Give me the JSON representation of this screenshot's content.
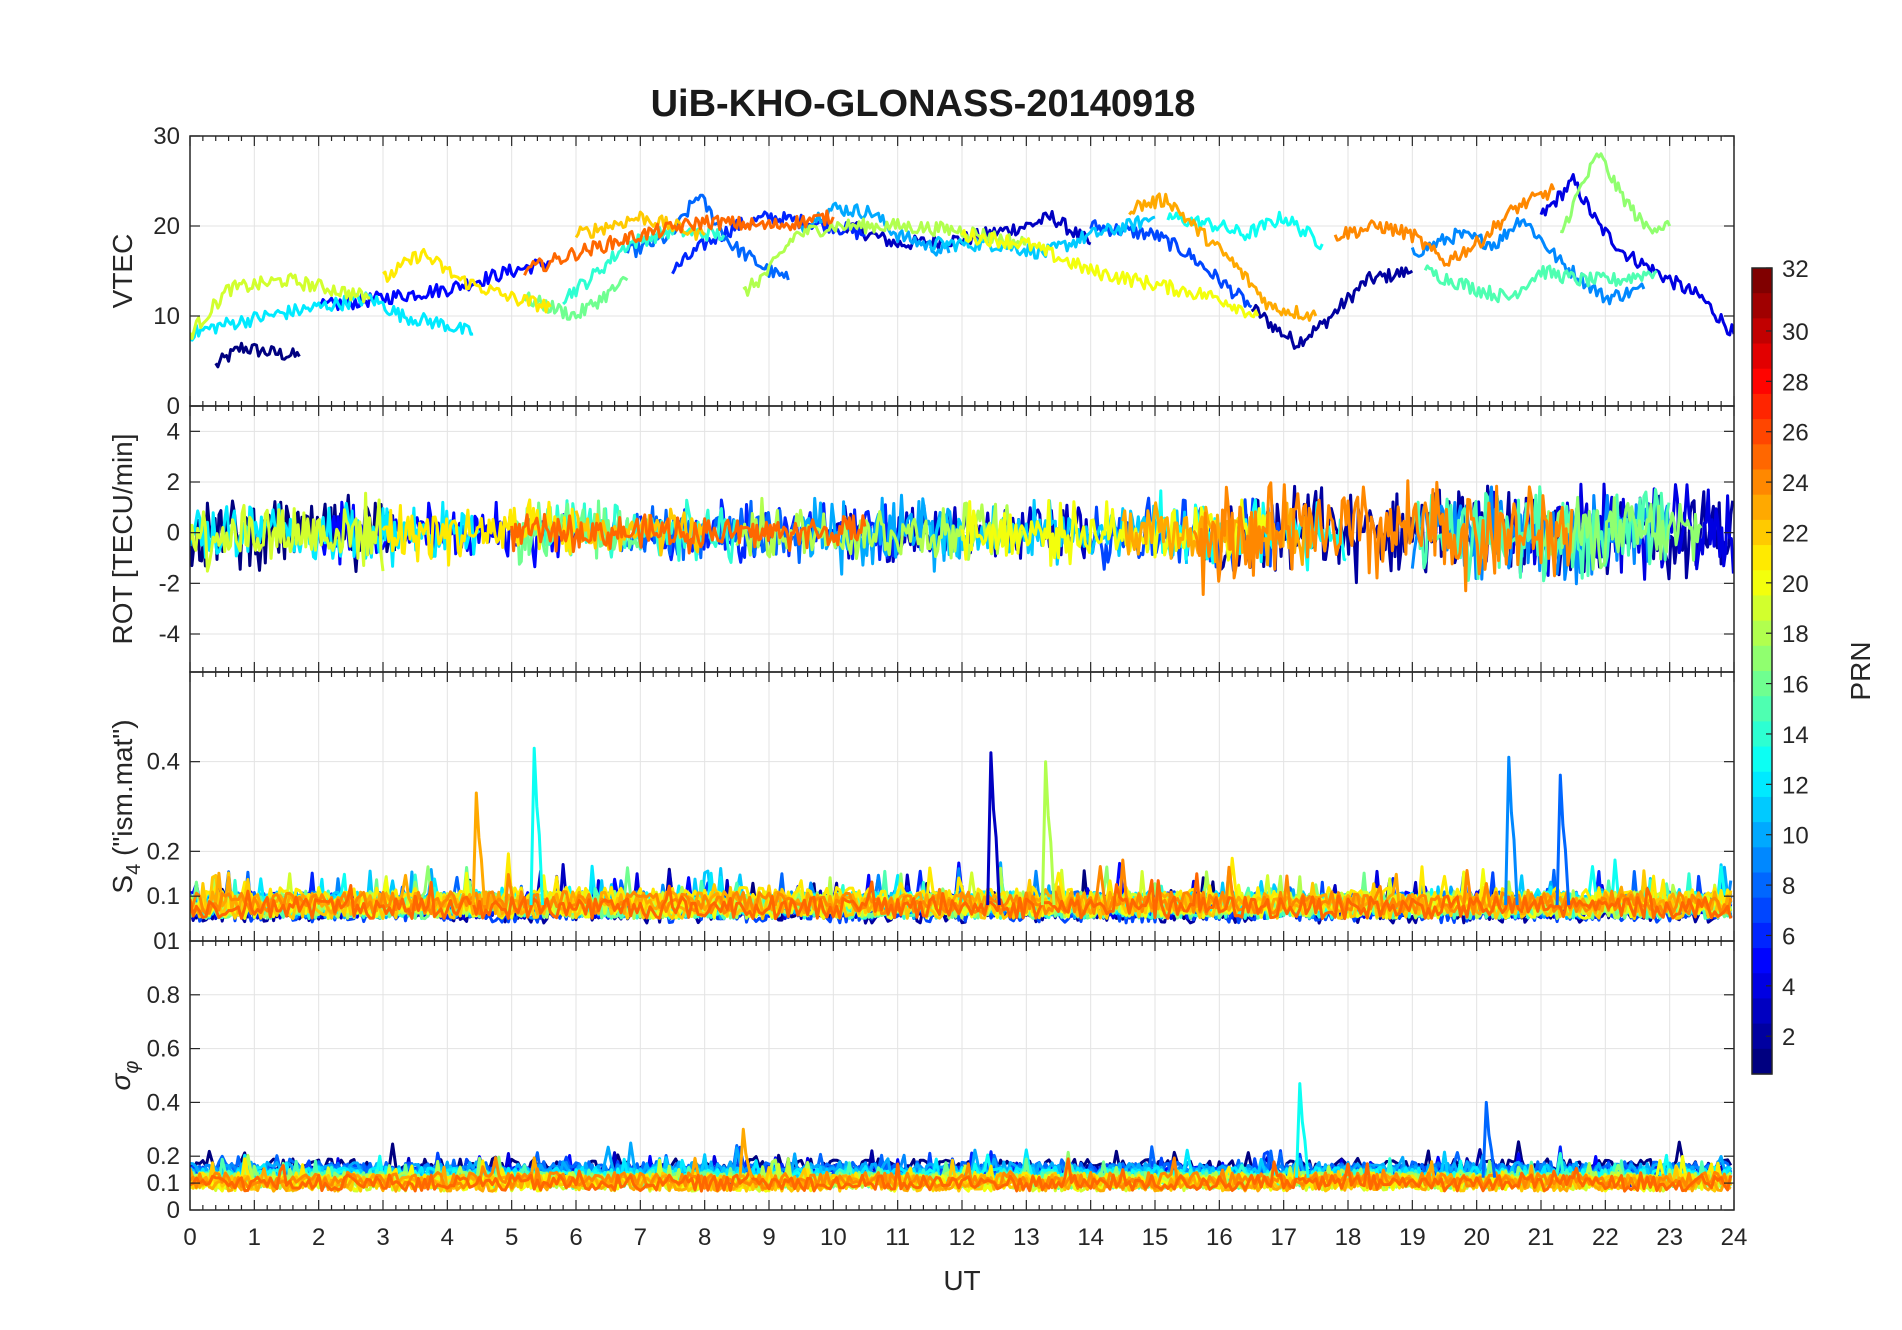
{
  "chart_data": {
    "type": "line",
    "title": "UiB-KHO-GLONASS-20140918",
    "xlabel": "UT",
    "xlim": [
      0,
      24
    ],
    "xticks": [
      0,
      1,
      2,
      3,
      4,
      5,
      6,
      7,
      8,
      9,
      10,
      11,
      12,
      13,
      14,
      15,
      16,
      17,
      18,
      19,
      20,
      21,
      22,
      23,
      24
    ],
    "grid": true,
    "panels": [
      {
        "name": "vtec",
        "ylabel": "VTEC",
        "ylim": [
          0,
          30
        ],
        "yticks": [
          0,
          10,
          20,
          30
        ]
      },
      {
        "name": "rot",
        "ylabel": "ROT [TECU/min]",
        "ylim": [
          -5.5,
          5
        ],
        "yticks": [
          -4,
          -2,
          0,
          2,
          4
        ]
      },
      {
        "name": "s4",
        "ylabel": "S4 (\"ism.mat\")",
        "ylabel_main": "S",
        "ylabel_sub": "4",
        "ylabel_rest": " (\"ism.mat\")",
        "ylim": [
          0,
          0.6
        ],
        "yticks": [
          0.1,
          0.2,
          0.4
        ],
        "extra_tick": "01"
      },
      {
        "name": "sigma",
        "ylabel": "σφ",
        "ylabel_main": "σ",
        "ylabel_sub": "φ",
        "ylim": [
          0,
          1
        ],
        "yticks": [
          0,
          0.1,
          0.2,
          0.4,
          0.6,
          0.8
        ]
      }
    ],
    "colorbar": {
      "label": "PRN",
      "min": 1,
      "max": 32,
      "ticks": [
        2,
        4,
        6,
        8,
        10,
        12,
        14,
        16,
        18,
        20,
        22,
        24,
        26,
        28,
        30,
        32
      ],
      "colormap": "jet"
    },
    "series": [
      {
        "prn": 1,
        "vtec": [
          [
            0.4,
            4.5
          ],
          [
            0.8,
            6.5
          ],
          [
            1.2,
            6
          ],
          [
            1.7,
            5.5
          ]
        ],
        "rot_band": [
          0,
          3.2,
          1.2
        ],
        "s4_base": 0.07,
        "sig_base": 0.16
      },
      {
        "prn": 2,
        "vtec": [
          [
            16.5,
            11
          ],
          [
            16.9,
            8.5
          ],
          [
            17.2,
            7
          ],
          [
            17.6,
            9
          ],
          [
            18.3,
            14
          ],
          [
            19,
            15
          ]
        ],
        "rot_band": [
          16,
          24,
          1.5
        ],
        "s4_base": 0.06,
        "sig_base": 0.14
      },
      {
        "prn": 3,
        "vtec": [
          [
            10.2,
            20
          ],
          [
            11,
            18
          ],
          [
            12,
            18.5
          ],
          [
            13,
            20
          ],
          [
            13.4,
            21
          ],
          [
            14,
            18
          ]
        ],
        "rot_band": [
          10,
          14,
          1.0
        ],
        "s4_base": 0.07,
        "sig_base": 0.13
      },
      {
        "prn": 4,
        "vtec": [
          [
            21,
            21
          ],
          [
            21.5,
            25
          ],
          [
            21.9,
            20
          ],
          [
            22.3,
            17
          ],
          [
            23,
            14
          ],
          [
            23.5,
            12
          ],
          [
            24,
            8
          ]
        ],
        "rot_band": [
          20,
          24,
          1.5
        ],
        "s4_base": 0.07,
        "sig_base": 0.12
      },
      {
        "prn": 5,
        "vtec": [
          [
            2,
            11
          ],
          [
            3,
            12
          ],
          [
            4,
            13
          ],
          [
            5,
            15
          ],
          [
            5.6,
            16
          ]
        ],
        "rot_band": [
          2,
          6,
          1.0
        ],
        "s4_base": 0.08,
        "sig_base": 0.13
      },
      {
        "prn": 6,
        "vtec": [
          [
            7.5,
            15
          ],
          [
            8,
            18
          ],
          [
            8.5,
            20
          ],
          [
            9,
            21
          ],
          [
            10,
            20
          ],
          [
            10.5,
            19
          ]
        ],
        "rot_band": [
          7,
          11,
          1.0
        ],
        "s4_base": 0.07,
        "sig_base": 0.13
      },
      {
        "prn": 7,
        "vtec": [
          [
            14,
            20
          ],
          [
            15,
            19
          ],
          [
            15.5,
            17
          ],
          [
            16,
            14
          ],
          [
            16.5,
            11
          ]
        ],
        "rot_band": [
          14,
          17,
          1.2
        ],
        "s4_base": 0.06,
        "sig_base": 0.14
      },
      {
        "prn": 8,
        "vtec": [
          [
            6.8,
            17
          ],
          [
            7.5,
            19
          ],
          [
            7.9,
            23.5
          ],
          [
            8.4,
            18
          ],
          [
            9,
            15
          ],
          [
            9.3,
            14
          ]
        ],
        "rot_band": [
          6.5,
          9.5,
          1.0
        ],
        "s4_base": 0.08,
        "sig_base": 0.15
      },
      {
        "prn": 9,
        "vtec": [
          [
            19,
            17
          ],
          [
            19.7,
            19
          ],
          [
            20.3,
            18
          ],
          [
            20.7,
            21
          ],
          [
            21.3,
            16
          ],
          [
            22,
            12
          ],
          [
            22.6,
            13
          ]
        ],
        "rot_band": [
          19,
          23,
          1.5
        ],
        "s4_base": 0.08,
        "sig_base": 0.14
      },
      {
        "prn": 10,
        "vtec": [
          [
            9.5,
            20
          ],
          [
            10,
            22
          ],
          [
            10.6,
            21.5
          ],
          [
            11,
            19
          ],
          [
            11.8,
            17
          ]
        ],
        "rot_band": [
          9.5,
          12,
          1.2
        ],
        "s4_base": 0.07,
        "sig_base": 0.15
      },
      {
        "prn": 11,
        "vtec": [
          [
            11.5,
            18
          ],
          [
            12.5,
            18
          ],
          [
            13.3,
            17
          ],
          [
            14,
            19
          ],
          [
            14.6,
            20
          ],
          [
            15,
            21
          ]
        ],
        "rot_band": [
          11.5,
          15.5,
          1.0
        ],
        "s4_base": 0.08,
        "sig_base": 0.13
      },
      {
        "prn": 12,
        "vtec": [
          [
            0,
            8
          ],
          [
            0.5,
            9
          ],
          [
            1.2,
            10
          ],
          [
            2,
            11
          ],
          [
            2.8,
            12
          ],
          [
            3.3,
            10
          ],
          [
            4,
            9
          ],
          [
            4.4,
            8
          ]
        ],
        "rot_band": [
          0,
          4.5,
          1.0
        ],
        "s4_base": 0.08,
        "sig_base": 0.13
      },
      {
        "prn": 13,
        "vtec": [
          [
            15.2,
            21
          ],
          [
            16,
            20
          ],
          [
            16.4,
            19
          ],
          [
            17,
            21
          ],
          [
            17.6,
            18
          ]
        ],
        "rot_band": [
          15,
          18,
          1.2
        ],
        "s4_base": 0.08,
        "sig_base": 0.12
      },
      {
        "prn": 14,
        "vtec": [
          [
            5.8,
            12
          ],
          [
            6.2,
            14
          ],
          [
            6.8,
            18
          ],
          [
            7.5,
            19.5
          ],
          [
            8.3,
            19
          ]
        ],
        "rot_band": [
          5.5,
          8.5,
          1.0
        ],
        "s4_base": 0.07,
        "sig_base": 0.12
      },
      {
        "prn": 15,
        "vtec": [
          [
            19.2,
            15
          ],
          [
            20,
            13
          ],
          [
            20.5,
            12
          ],
          [
            21,
            15
          ],
          [
            21.6,
            14
          ],
          [
            22.2,
            14
          ],
          [
            22.8,
            15
          ]
        ],
        "rot_band": [
          19,
          23,
          1.5
        ],
        "s4_base": 0.07,
        "sig_base": 0.11
      },
      {
        "prn": 16,
        "vtec": [
          [
            5.2,
            12
          ],
          [
            5.6,
            11
          ],
          [
            6,
            10
          ],
          [
            6.4,
            12
          ],
          [
            6.8,
            14
          ]
        ],
        "rot_band": [
          5,
          7,
          1.0
        ],
        "s4_base": 0.07,
        "sig_base": 0.11
      },
      {
        "prn": 17,
        "vtec": [
          [
            21.3,
            19
          ],
          [
            21.6,
            24
          ],
          [
            21.9,
            28
          ],
          [
            22.2,
            24
          ],
          [
            22.6,
            20
          ],
          [
            23,
            20
          ]
        ],
        "rot_band": [
          21,
          23.5,
          1.2
        ],
        "s4_base": 0.08,
        "sig_base": 0.11
      },
      {
        "prn": 18,
        "vtec": [
          [
            8.6,
            12.5
          ],
          [
            9,
            15
          ],
          [
            9.4,
            19
          ],
          [
            10,
            20
          ],
          [
            11,
            20
          ],
          [
            12,
            19.5
          ],
          [
            13,
            18
          ]
        ],
        "rot_band": [
          8.5,
          13,
          1.0
        ],
        "s4_base": 0.07,
        "sig_base": 0.11
      },
      {
        "prn": 19,
        "vtec": [
          [
            0,
            8
          ],
          [
            0.6,
            13
          ],
          [
            1.5,
            14
          ],
          [
            2.2,
            13
          ],
          [
            2.8,
            12
          ]
        ],
        "rot_band": [
          0,
          3,
          1.2
        ],
        "s4_base": 0.08,
        "sig_base": 0.1
      },
      {
        "prn": 20,
        "vtec": [
          [
            12,
            19
          ],
          [
            13,
            18
          ],
          [
            14,
            15
          ],
          [
            15,
            13.5
          ],
          [
            16,
            12
          ],
          [
            16.6,
            10
          ]
        ],
        "rot_band": [
          12,
          16.8,
          1.0
        ],
        "s4_base": 0.07,
        "sig_base": 0.1
      },
      {
        "prn": 21,
        "vtec": [
          [
            3,
            14
          ],
          [
            3.6,
            17
          ],
          [
            4.2,
            14
          ],
          [
            5,
            12
          ],
          [
            5.6,
            11
          ]
        ],
        "rot_band": [
          3,
          6,
          1.0
        ],
        "s4_base": 0.09,
        "sig_base": 0.11
      },
      {
        "prn": 22,
        "vtec": [
          [
            6,
            19
          ],
          [
            6.5,
            20
          ],
          [
            7,
            21
          ],
          [
            7.5,
            20
          ],
          [
            8,
            19
          ]
        ],
        "rot_band": [
          6,
          8,
          0.8
        ],
        "s4_base": 0.07,
        "sig_base": 0.1
      },
      {
        "prn": 23,
        "vtec": [
          [
            14.6,
            22
          ],
          [
            15.2,
            23
          ],
          [
            15.6,
            20
          ],
          [
            16.2,
            16
          ],
          [
            16.8,
            11
          ],
          [
            17.5,
            10
          ]
        ],
        "rot_band": [
          14.5,
          17.5,
          1.0
        ],
        "s4_base": 0.08,
        "sig_base": 0.1
      },
      {
        "prn": 24,
        "vtec": [
          [
            17.8,
            19
          ],
          [
            18.5,
            20
          ],
          [
            19,
            19
          ],
          [
            19.5,
            16
          ],
          [
            20,
            18
          ],
          [
            20.6,
            22
          ],
          [
            21.2,
            24
          ]
        ],
        "rot_band": [
          15.6,
          21.5,
          1.8
        ],
        "s4_base": 0.08,
        "sig_base": 0.11
      },
      {
        "prn": 25,
        "vtec": [
          [
            5.2,
            15
          ],
          [
            6,
            17
          ],
          [
            7,
            19
          ],
          [
            8,
            20.5
          ],
          [
            9,
            20
          ],
          [
            10,
            21
          ]
        ],
        "rot_band": [
          5,
          10.5,
          0.6
        ],
        "s4_base": 0.07,
        "sig_base": 0.1
      }
    ],
    "s4_spikes": [
      {
        "prn": 23,
        "x": 4.45,
        "peak": 0.33
      },
      {
        "prn": 13,
        "x": 5.35,
        "peak": 0.43
      },
      {
        "prn": 3,
        "x": 12.45,
        "peak": 0.42
      },
      {
        "prn": 18,
        "x": 13.3,
        "peak": 0.4
      },
      {
        "prn": 9,
        "x": 20.5,
        "peak": 0.41
      },
      {
        "prn": 8,
        "x": 21.3,
        "peak": 0.37
      }
    ],
    "sigma_spikes": [
      {
        "prn": 13,
        "x": 17.25,
        "peak": 0.47
      },
      {
        "prn": 8,
        "x": 20.15,
        "peak": 0.4
      },
      {
        "prn": 23,
        "x": 8.6,
        "peak": 0.3
      }
    ]
  }
}
